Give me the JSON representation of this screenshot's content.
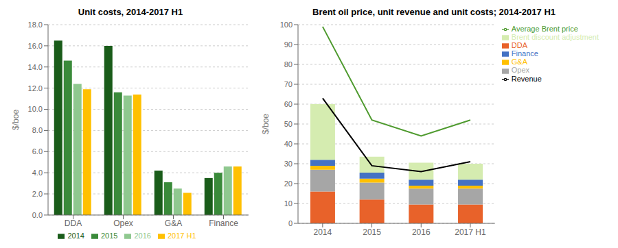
{
  "chart_data": [
    {
      "type": "bar",
      "title": "Unit costs, 2014-2017 H1",
      "y_label": "$/boe",
      "categories": [
        "DDA",
        "Opex",
        "G&A",
        "Finance"
      ],
      "series": [
        {
          "name": "2014",
          "color": "#1a5c1a",
          "values": [
            16.5,
            16.0,
            4.2,
            3.5
          ]
        },
        {
          "name": "2015",
          "color": "#3a8a3a",
          "values": [
            14.6,
            11.6,
            3.1,
            4.0
          ]
        },
        {
          "name": "2016",
          "color": "#8fc88f",
          "values": [
            12.4,
            11.3,
            2.5,
            4.6
          ]
        },
        {
          "name": "2017 H1",
          "color": "#ffc000",
          "values": [
            11.9,
            11.4,
            2.1,
            4.6
          ]
        }
      ],
      "ylim": [
        0,
        18.0
      ],
      "yticks": [
        {
          "value": 0.0,
          "label": "0.0"
        },
        {
          "value": 2.0,
          "label": "2.0"
        },
        {
          "value": 4.0,
          "label": "4.0"
        },
        {
          "value": 6.0,
          "label": "6.0"
        },
        {
          "value": 8.0,
          "label": "8.0"
        },
        {
          "value": 10.0,
          "label": "10.0"
        },
        {
          "value": 12.0,
          "label": "12.0"
        },
        {
          "value": 14.0,
          "label": "14.0"
        },
        {
          "value": 16.0,
          "label": "16.0"
        },
        {
          "value": 18.0,
          "label": "18.0"
        }
      ],
      "grid": true,
      "legend": "bottom"
    },
    {
      "type": "bar",
      "title": "Brent oil price, unit revenue and unit costs; 2014-2017 H1",
      "y_label": "$/boe",
      "categories": [
        "2014",
        "2015",
        "2016",
        "2017 H1"
      ],
      "stacked": true,
      "series": [
        {
          "name": "DDA",
          "type": "bar",
          "color": "#e8622a",
          "values": [
            16.0,
            12.0,
            9.5,
            9.5
          ]
        },
        {
          "name": "Opex",
          "type": "bar",
          "color": "#a6a6a6",
          "values": [
            11.0,
            8.5,
            8.0,
            8.0
          ]
        },
        {
          "name": "G&A",
          "type": "bar",
          "color": "#ffc000",
          "values": [
            2.0,
            2.0,
            1.5,
            1.5
          ]
        },
        {
          "name": "Finance",
          "type": "bar",
          "color": "#4472c4",
          "values": [
            3.0,
            3.0,
            3.0,
            3.0
          ]
        },
        {
          "name": "Brent discount adjustment",
          "type": "bar",
          "color": "#d5ecb0",
          "values": [
            28.0,
            8.0,
            8.5,
            8.0
          ]
        },
        {
          "name": "Revenue",
          "type": "line",
          "color": "#000000",
          "values": [
            63.0,
            29.0,
            26.0,
            31.0
          ]
        },
        {
          "name": "Average Brent price",
          "type": "line",
          "color": "#4e9a2e",
          "values": [
            99.0,
            52.0,
            44.0,
            52.0
          ]
        }
      ],
      "ylim": [
        0,
        100
      ],
      "yticks": [
        0,
        10,
        20,
        30,
        40,
        50,
        60,
        70,
        80,
        90,
        100
      ],
      "grid": true,
      "legend": "right"
    }
  ]
}
